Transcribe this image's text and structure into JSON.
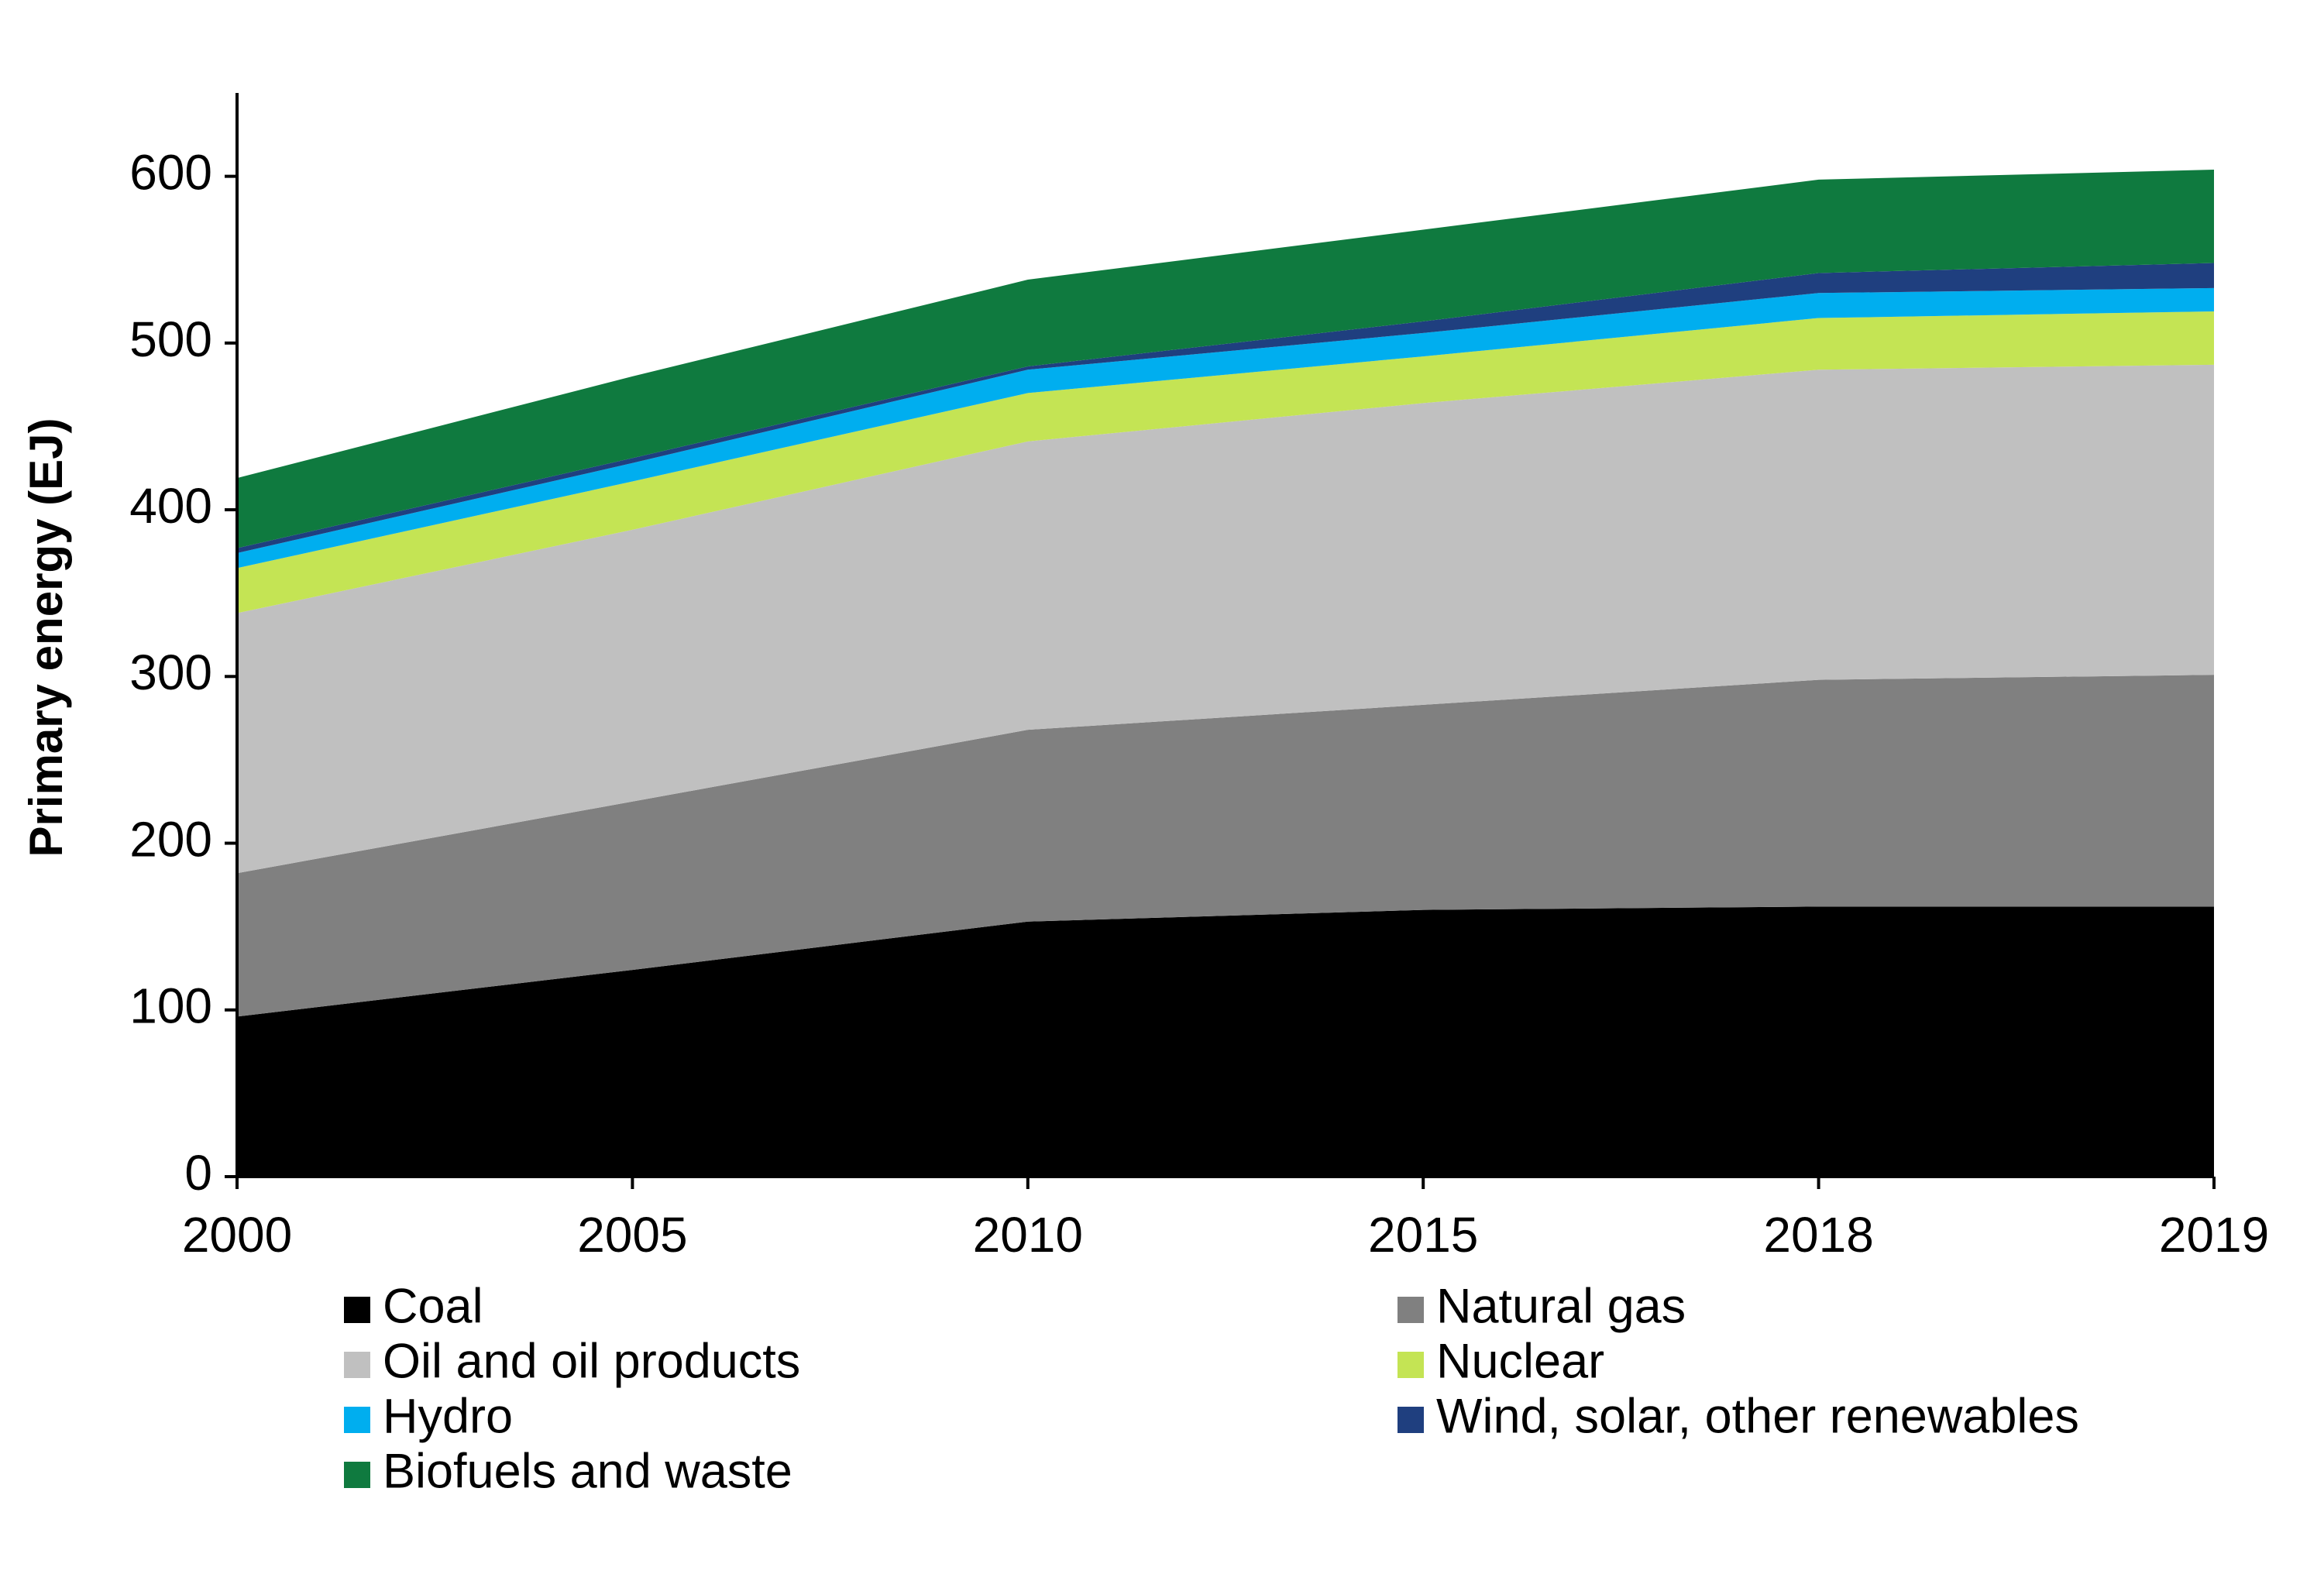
{
  "chart_data": {
    "type": "stacked-area",
    "y_label": "Primary energy (EJ)",
    "categories": [
      "2000",
      "2005",
      "2010",
      "2015",
      "2018",
      "2019"
    ],
    "ylim": [
      0,
      650
    ],
    "yticks": [
      0,
      100,
      200,
      300,
      400,
      500,
      600
    ],
    "series": [
      {
        "name": "Coal",
        "color": "#000000",
        "values": [
          96,
          124,
          153,
          160,
          162,
          162
        ]
      },
      {
        "name": "Natural gas",
        "color": "#808080",
        "values": [
          86,
          101,
          115,
          123,
          136,
          139
        ]
      },
      {
        "name": "Oil and oil products",
        "color": "#c0c0c0",
        "values": [
          156,
          163,
          173,
          181,
          186,
          186
        ]
      },
      {
        "name": "Nuclear",
        "color": "#c4e454",
        "values": [
          27,
          29,
          29,
          28,
          31,
          32
        ]
      },
      {
        "name": "Hydro",
        "color": "#00aeef",
        "values": [
          9,
          11,
          14,
          14,
          15,
          14
        ]
      },
      {
        "name": "Wind, solar, other renewables",
        "color": "#1f3f7f",
        "values": [
          3,
          3,
          2,
          7,
          12,
          15
        ]
      },
      {
        "name": "Biofuels and waste",
        "color": "#0f7a3f",
        "values": [
          42,
          49,
          52,
          55,
          56,
          56
        ]
      }
    ]
  }
}
